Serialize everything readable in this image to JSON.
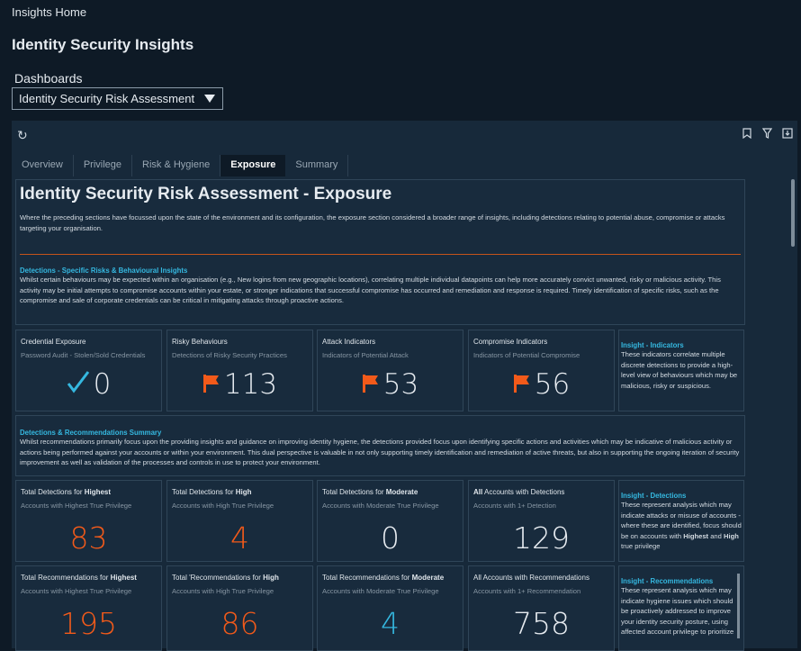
{
  "header": {
    "breadcrumb": "Insights Home",
    "title": "Identity Security Insights",
    "dashboards_label": "Dashboards",
    "dashboard_selected": "Identity Security Risk Assessment"
  },
  "toolbar": {
    "refresh": "refresh-icon",
    "bookmark": "bookmark-icon",
    "filter": "filter-icon",
    "download": "download-icon"
  },
  "tabs": [
    "Overview",
    "Privilege",
    "Risk & Hygiene",
    "Exposure",
    "Summary"
  ],
  "active_tab": "Exposure",
  "intro": {
    "title": "Identity Security Risk Assessment - Exposure",
    "text": "Where the preceding sections have focussed upon the state of the environment and its configuration, the exposure section considered a broader range of insights, including detections relating to potential abuse, compromise or attacks targeting your organisation.",
    "section_heading": "Detections - Specific Risks & Behavioural Insights",
    "section_text": "Whilst certain behaviours may be expected within an organisation (e.g., New logins from new geographic locations), correlating multiple individual datapoints can help more accurately convict unwanted, risky or malicious activity. This activity may be initial attempts to compromise accounts within your estate, or stronger indications that successful compromise has occurred and remediation and response is required. Timely identification of specific risks, such as the compromise and sale of corporate credentials can be critical in mitigating attacks through proactive actions."
  },
  "indicators": [
    {
      "title": "Credential Exposure",
      "subtitle": "Password Audit - Stolen/Sold Credentials",
      "value": "0",
      "icon": "check-icon"
    },
    {
      "title": "Risky Behaviours",
      "subtitle": "Detections of Risky Security Practices",
      "value": "113",
      "icon": "flag-icon"
    },
    {
      "title": "Attack Indicators",
      "subtitle": "Indicators of Potential Attack",
      "value": "53",
      "icon": "flag-icon"
    },
    {
      "title": "Compromise Indicators",
      "subtitle": "Indicators of Potential Compromise",
      "value": "56",
      "icon": "flag-icon"
    }
  ],
  "insight_indicators": {
    "heading": "Insight - Indicators",
    "text": "These indicators correlate multiple discrete detections to provide a high-level view of behaviours which may be malicious, risky or suspicious."
  },
  "summary": {
    "heading": "Detections & Recommendations Summary",
    "text": "Whilst recommendations primarily focus upon the providing insights and guidance on improving identity hygiene, the detections provided focus upon identifying specific actions and activities which may be indicative of malicious activity or actions being performed against your accounts or within your environment. This dual perspective is valuable in not only supporting timely identification and remediation of active threats, but also in supporting the ongoing iteration of security improvement as well as validation of the processes and controls in use to protect your environment."
  },
  "detections": [
    {
      "prefix": "Total Detections for ",
      "bold": "Highest",
      "suffix": "",
      "subtitle": "Accounts with Highest True Privilege",
      "value": "83"
    },
    {
      "prefix": "Total Detections for ",
      "bold": "High",
      "suffix": "",
      "subtitle": "Accounts with High True Privilege",
      "value": "4"
    },
    {
      "prefix": "Total Detections for ",
      "bold": "Moderate",
      "suffix": "",
      "subtitle": "Accounts with Moderate True Privilege",
      "value": "0"
    },
    {
      "prefix": "",
      "bold": "All",
      "suffix": " Accounts with Detections",
      "subtitle": "Accounts with 1+ Detection",
      "value": "129"
    }
  ],
  "insight_detections": {
    "heading": "Insight - Detections",
    "text": "These represent analysis which may indicate attacks or misuse of accounts - where these are identified, focus should be on accounts with ",
    "b1": "Highest",
    "mid": " and ",
    "b2": "High",
    "end": " true privilege"
  },
  "recommendations": [
    {
      "prefix": "Total Recommendations for ",
      "bold": "Highest",
      "suffix": "",
      "subtitle": "Accounts with Highest True Privilege",
      "value": "195"
    },
    {
      "prefix": "Total 'Recommendations for ",
      "bold": "High",
      "suffix": "",
      "subtitle": "Accounts with High True Privilege",
      "value": "86"
    },
    {
      "prefix": "Total Recommendations for ",
      "bold": "Moderate",
      "suffix": "",
      "subtitle": "Accounts with Moderate True Privilege",
      "value": "4"
    },
    {
      "prefix": "All Accounts with Recommendations",
      "bold": "",
      "suffix": "",
      "subtitle": "Accounts with 1+ Recommendation",
      "value": "758"
    }
  ],
  "insight_recommendations": {
    "heading": "Insight - Recommendations",
    "text": "These represent analysis which may indicate hygiene issues which should be proactively addressed to improve your identity security posture, using affected account privilege to prioritize"
  },
  "colors": {
    "orange": "#f25a1a",
    "cyan": "#35b8e0",
    "background": "#0e1a26",
    "panel": "#17293a"
  }
}
